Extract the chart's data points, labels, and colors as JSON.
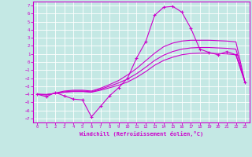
{
  "xlabel": "Windchill (Refroidissement éolien,°C)",
  "xlim": [
    -0.5,
    23.5
  ],
  "ylim": [
    -7.5,
    7.5
  ],
  "xticks": [
    0,
    1,
    2,
    3,
    4,
    5,
    6,
    7,
    8,
    9,
    10,
    11,
    12,
    13,
    14,
    15,
    16,
    17,
    18,
    19,
    20,
    21,
    22,
    23
  ],
  "yticks": [
    7,
    6,
    5,
    4,
    3,
    2,
    1,
    0,
    -1,
    -2,
    -3,
    -4,
    -5,
    -6,
    -7
  ],
  "bg_color": "#c4e8e4",
  "line_color": "#cc00cc",
  "grid_color": "#aad4d0",
  "line1_x": [
    0,
    1,
    2,
    3,
    4,
    5,
    6,
    7,
    8,
    9,
    10,
    11,
    12,
    13,
    14,
    15,
    16,
    17,
    18,
    19,
    20,
    21,
    22,
    23
  ],
  "line1_y": [
    -4.0,
    -4.3,
    -3.8,
    -4.2,
    -4.6,
    -4.7,
    -6.8,
    -5.5,
    -4.2,
    -3.2,
    -2.0,
    0.5,
    2.5,
    5.8,
    6.8,
    6.9,
    6.2,
    4.2,
    1.6,
    1.2,
    0.9,
    1.3,
    0.9,
    -2.5
  ],
  "line2_x": [
    0,
    1,
    2,
    3,
    4,
    5,
    6,
    7,
    8,
    9,
    10,
    11,
    12,
    13,
    14,
    15,
    16,
    17,
    18,
    19,
    20,
    21,
    22,
    23
  ],
  "line2_y": [
    -4.0,
    -4.1,
    -3.85,
    -3.6,
    -3.5,
    -3.5,
    -3.6,
    -3.25,
    -2.8,
    -2.3,
    -1.6,
    -0.8,
    0.15,
    1.1,
    1.9,
    2.35,
    2.6,
    2.7,
    2.7,
    2.7,
    2.65,
    2.6,
    2.5,
    -2.5
  ],
  "line3_x": [
    0,
    1,
    2,
    3,
    4,
    5,
    6,
    7,
    8,
    9,
    10,
    11,
    12,
    13,
    14,
    15,
    16,
    17,
    18,
    19,
    20,
    21,
    22,
    23
  ],
  "line3_y": [
    -4.0,
    -4.05,
    -3.88,
    -3.7,
    -3.6,
    -3.6,
    -3.7,
    -3.38,
    -3.0,
    -2.6,
    -2.1,
    -1.45,
    -0.65,
    0.2,
    0.85,
    1.3,
    1.6,
    1.75,
    1.8,
    1.8,
    1.75,
    1.7,
    1.6,
    -2.5
  ],
  "line4_x": [
    0,
    1,
    2,
    3,
    4,
    5,
    6,
    7,
    8,
    9,
    10,
    11,
    12,
    13,
    14,
    15,
    16,
    17,
    18,
    19,
    20,
    21,
    22,
    23
  ],
  "line4_y": [
    -4.0,
    -4.02,
    -3.9,
    -3.75,
    -3.67,
    -3.67,
    -3.75,
    -3.5,
    -3.2,
    -2.88,
    -2.48,
    -1.9,
    -1.2,
    -0.4,
    0.2,
    0.6,
    0.9,
    1.05,
    1.1,
    1.1,
    1.05,
    1.0,
    0.9,
    -2.5
  ]
}
